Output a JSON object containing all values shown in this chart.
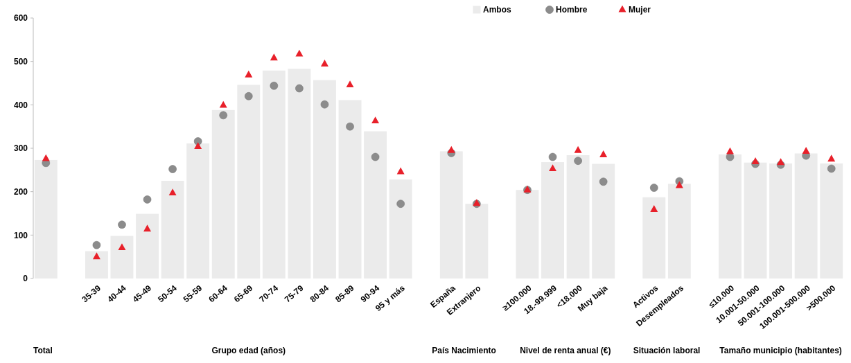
{
  "chart_data": {
    "type": "bar",
    "categories": [
      null,
      null,
      "35-39",
      "40-44",
      "45-49",
      "50-54",
      "55-59",
      "60-64",
      "65-69",
      "70-74",
      "75-79",
      "80-84",
      "85-89",
      "90-94",
      "95 y más",
      null,
      "España",
      "Extranjero",
      null,
      "≥100.000",
      "18.-99.999",
      "<18.000",
      "Muy baja",
      null,
      "Activos",
      "Desempleados",
      null,
      "≤10.000",
      "10.001-50.000",
      "50.001-100.000",
      "100.001-500.000",
      ">500.000"
    ],
    "series": [
      {
        "name": "Ambos",
        "color": "#ebebeb",
        "values": [
          273,
          null,
          63,
          98,
          149,
          225,
          311,
          388,
          446,
          479,
          483,
          457,
          411,
          339,
          228,
          null,
          293,
          172,
          null,
          204,
          268,
          284,
          264,
          null,
          187,
          218,
          null,
          286,
          267,
          265,
          288,
          265
        ]
      },
      {
        "name": "Hombre",
        "type": "scatter",
        "marker": "circle",
        "color": "#8c8c8c",
        "values": [
          266,
          null,
          77,
          124,
          182,
          252,
          316,
          376,
          420,
          444,
          438,
          401,
          350,
          280,
          172,
          null,
          289,
          172,
          null,
          204,
          280,
          271,
          223,
          null,
          209,
          224,
          null,
          280,
          264,
          262,
          283,
          253
        ]
      },
      {
        "name": "Mujer",
        "type": "scatter",
        "marker": "triangle",
        "color": "#e8202a",
        "values": [
          276,
          null,
          50,
          71,
          114,
          197,
          304,
          399,
          469,
          508,
          517,
          494,
          446,
          363,
          246,
          null,
          295,
          173,
          null,
          204,
          253,
          295,
          285,
          null,
          159,
          214,
          null,
          292,
          269,
          267,
          293,
          275
        ]
      }
    ],
    "ylim": [
      0,
      600
    ],
    "yticks": [
      0,
      100,
      200,
      300,
      400,
      500,
      600
    ],
    "grid": false,
    "legend": "top",
    "annotations": [
      "Total",
      "Grupo edad (años)",
      "País Nacimiento",
      "Nivel de renta anual (€)",
      "Situación laboral",
      "Tamaño municipio (habitantes)"
    ]
  }
}
